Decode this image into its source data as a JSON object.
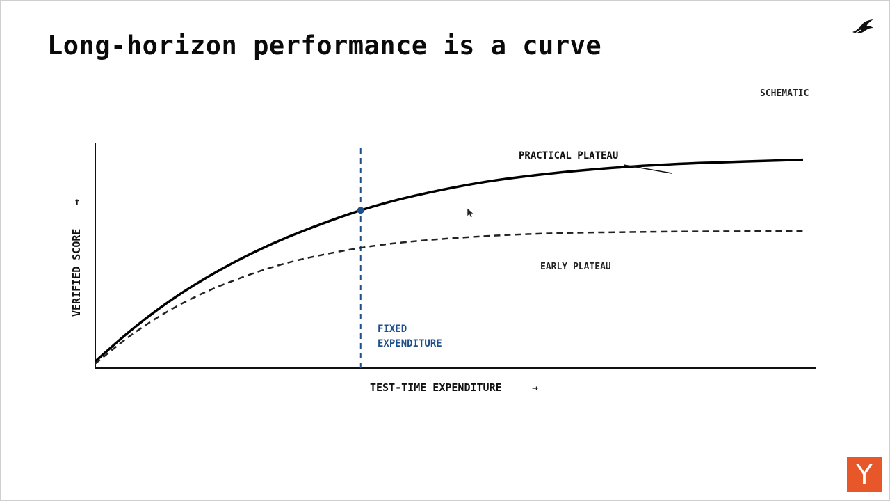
{
  "slide": {
    "title": "Long-horizon performance is a curve",
    "badge": "SCHEMATIC",
    "brand_icon": "bird-icon",
    "corner_logo": "Y",
    "corner_logo_color": "#e8572a"
  },
  "chart_data": {
    "type": "line",
    "title": "",
    "xlabel": "TEST-TIME EXPENDITURE",
    "ylabel": "VERIFIED SCORE",
    "xlim": [
      0,
      100
    ],
    "ylim": [
      0,
      100
    ],
    "grid": false,
    "series": [
      {
        "name": "",
        "style": "solid",
        "color": "#000000",
        "x": [
          0,
          5,
          10,
          15,
          20,
          25,
          30,
          37.5,
          45,
          55,
          65,
          75,
          85,
          100
        ],
        "y": [
          3,
          16.7,
          28.7,
          38.9,
          47.7,
          55.3,
          61.8,
          70.2,
          76.6,
          82.8,
          86.8,
          89.5,
          91.2,
          92.7
        ]
      },
      {
        "name": "",
        "style": "dashed",
        "color": "#222222",
        "x": [
          0,
          5,
          10,
          15,
          20,
          25,
          30,
          37.5,
          45,
          55,
          65,
          75,
          85,
          100
        ],
        "y": [
          2,
          14.5,
          24.8,
          33,
          39.5,
          44.9,
          49,
          53.5,
          56.4,
          58.7,
          60,
          60.5,
          60.8,
          61
        ]
      }
    ],
    "marker": {
      "x": 37.5,
      "y": 70.2,
      "color": "#1f4f8a"
    },
    "vline": {
      "x": 37.5,
      "color": "#1f4f8a"
    },
    "annotations": {
      "practical_plateau": "PRACTICAL PLATEAU",
      "early_plateau": "EARLY PLATEAU",
      "fixed_1": "FIXED",
      "fixed_2": "EXPENDITURE"
    },
    "arrow_glyph": "→"
  }
}
